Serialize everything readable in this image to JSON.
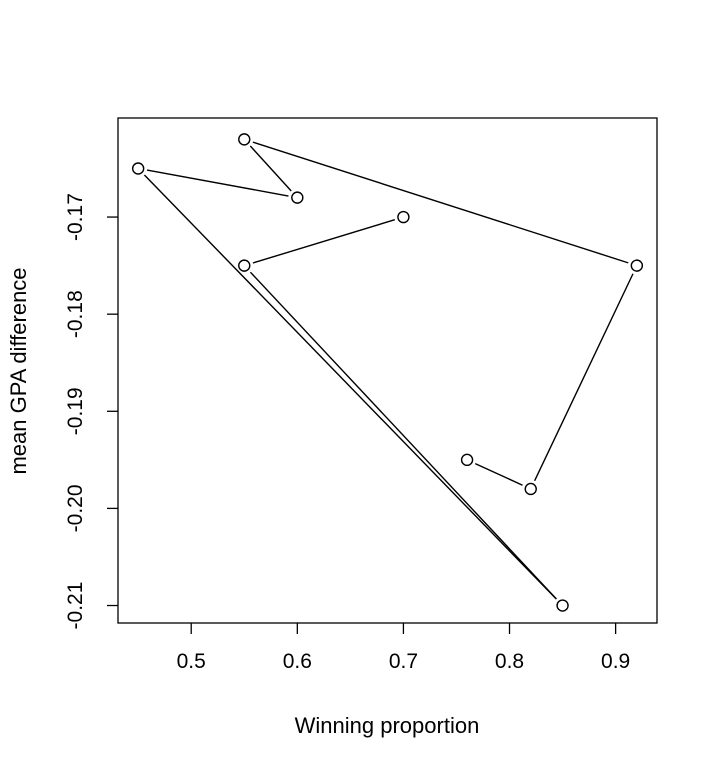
{
  "chart_data": {
    "type": "line",
    "title": "",
    "xlabel": "Winning proportion",
    "ylabel": "mean GPA difference",
    "xlim": [
      0.431,
      0.939
    ],
    "ylim": [
      -0.2118,
      -0.1598
    ],
    "x_ticks": [
      0.5,
      0.6,
      0.7,
      0.8,
      0.9
    ],
    "x_tick_labels": [
      "0.5",
      "0.6",
      "0.7",
      "0.8",
      "0.9"
    ],
    "y_ticks": [
      -0.17,
      -0.18,
      -0.19,
      -0.2,
      -0.21
    ],
    "y_tick_labels": [
      "-0.17",
      "-0.18",
      "-0.19",
      "-0.20",
      "-0.21"
    ],
    "grid": false,
    "legend": "none",
    "marker": "open-circle",
    "points": [
      {
        "x": 0.76,
        "y": -0.195
      },
      {
        "x": 0.82,
        "y": -0.198
      },
      {
        "x": 0.92,
        "y": -0.175
      },
      {
        "x": 0.55,
        "y": -0.162
      },
      {
        "x": 0.6,
        "y": -0.168
      },
      {
        "x": 0.45,
        "y": -0.165
      },
      {
        "x": 0.85,
        "y": -0.21
      },
      {
        "x": 0.55,
        "y": -0.175
      },
      {
        "x": 0.7,
        "y": -0.17
      }
    ]
  }
}
